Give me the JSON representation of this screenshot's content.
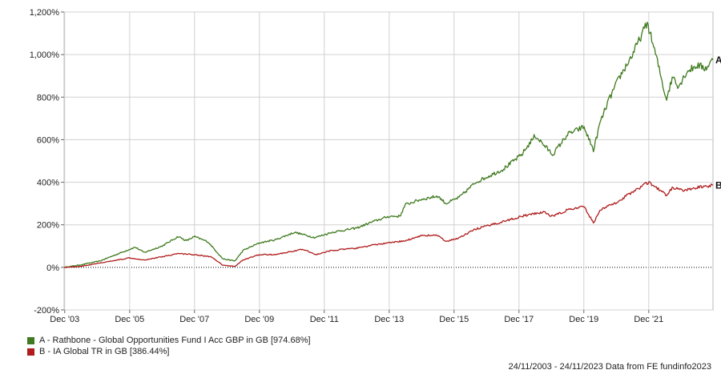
{
  "chart_data": {
    "type": "line",
    "y_unit": "%",
    "ylim": [
      -200,
      1200
    ],
    "y_ticks": [
      -200,
      0,
      200,
      400,
      600,
      800,
      1000,
      1200
    ],
    "y_tick_labels": [
      "-200%",
      "0%",
      "200%",
      "400%",
      "600%",
      "800%",
      "1,000%",
      "1,200%"
    ],
    "x_ticks": [
      "2003-12-01",
      "2005-12-01",
      "2007-12-01",
      "2009-12-01",
      "2011-12-01",
      "2013-12-01",
      "2015-12-01",
      "2017-12-01",
      "2019-12-01",
      "2021-12-01"
    ],
    "x_tick_labels": [
      "Dec '03",
      "Dec '05",
      "Dec '07",
      "Dec '09",
      "Dec '11",
      "Dec '13",
      "Dec '15",
      "Dec '17",
      "Dec '19",
      "Dec '21"
    ],
    "xlim": [
      "2003-11-24",
      "2023-11-24"
    ],
    "grid": true,
    "zero_line": "dotted",
    "legend_position": "bottom-left",
    "series": [
      {
        "id": "A",
        "name": "A - Rathbone - Global Opportunities Fund I Acc GBP in GB [974.68%]",
        "end_label": "A",
        "color": "#3f7a1e",
        "points": [
          [
            "2003-11-24",
            0
          ],
          [
            "2004-06-01",
            12
          ],
          [
            "2005-01-01",
            30
          ],
          [
            "2005-06-01",
            55
          ],
          [
            "2006-02-01",
            95
          ],
          [
            "2006-05-15",
            70
          ],
          [
            "2006-12-01",
            100
          ],
          [
            "2007-06-01",
            145
          ],
          [
            "2007-09-01",
            125
          ],
          [
            "2007-12-01",
            145
          ],
          [
            "2008-05-01",
            120
          ],
          [
            "2008-10-15",
            40
          ],
          [
            "2009-03-01",
            30
          ],
          [
            "2009-06-01",
            80
          ],
          [
            "2009-12-01",
            115
          ],
          [
            "2010-06-01",
            130
          ],
          [
            "2011-01-01",
            165
          ],
          [
            "2011-08-15",
            140
          ],
          [
            "2012-03-01",
            165
          ],
          [
            "2012-12-01",
            185
          ],
          [
            "2013-06-01",
            215
          ],
          [
            "2013-12-01",
            240
          ],
          [
            "2014-04-01",
            240
          ],
          [
            "2014-06-01",
            295
          ],
          [
            "2014-12-01",
            320
          ],
          [
            "2015-06-01",
            335
          ],
          [
            "2015-09-01",
            300
          ],
          [
            "2016-02-01",
            330
          ],
          [
            "2016-08-01",
            400
          ],
          [
            "2017-06-01",
            460
          ],
          [
            "2018-01-01",
            530
          ],
          [
            "2018-06-01",
            620
          ],
          [
            "2018-12-15",
            530
          ],
          [
            "2019-06-01",
            625
          ],
          [
            "2019-12-01",
            660
          ],
          [
            "2020-03-20",
            550
          ],
          [
            "2020-06-01",
            680
          ],
          [
            "2020-09-01",
            780
          ],
          [
            "2021-01-01",
            890
          ],
          [
            "2021-06-01",
            1000
          ],
          [
            "2021-11-15",
            1150
          ],
          [
            "2022-03-01",
            980
          ],
          [
            "2022-06-15",
            790
          ],
          [
            "2022-09-01",
            900
          ],
          [
            "2022-11-01",
            850
          ],
          [
            "2023-02-01",
            920
          ],
          [
            "2023-06-01",
            950
          ],
          [
            "2023-09-01",
            935
          ],
          [
            "2023-11-24",
            975
          ]
        ]
      },
      {
        "id": "B",
        "name": "B - IA Global TR in GB [386.44%]",
        "end_label": "B",
        "color": "#b01c1c",
        "points": [
          [
            "2003-11-24",
            0
          ],
          [
            "2004-06-01",
            5
          ],
          [
            "2005-01-01",
            20
          ],
          [
            "2005-12-01",
            45
          ],
          [
            "2006-05-15",
            35
          ],
          [
            "2006-12-01",
            50
          ],
          [
            "2007-06-01",
            65
          ],
          [
            "2007-12-01",
            60
          ],
          [
            "2008-06-01",
            50
          ],
          [
            "2008-10-15",
            10
          ],
          [
            "2009-03-01",
            5
          ],
          [
            "2009-06-01",
            35
          ],
          [
            "2009-12-01",
            60
          ],
          [
            "2010-06-01",
            60
          ],
          [
            "2011-04-01",
            85
          ],
          [
            "2011-09-01",
            60
          ],
          [
            "2012-03-01",
            80
          ],
          [
            "2012-12-01",
            90
          ],
          [
            "2013-06-01",
            105
          ],
          [
            "2013-12-01",
            115
          ],
          [
            "2014-06-01",
            125
          ],
          [
            "2014-12-01",
            150
          ],
          [
            "2015-06-01",
            150
          ],
          [
            "2015-09-01",
            120
          ],
          [
            "2016-02-01",
            140
          ],
          [
            "2016-08-01",
            180
          ],
          [
            "2017-06-01",
            215
          ],
          [
            "2018-01-01",
            240
          ],
          [
            "2018-09-01",
            260
          ],
          [
            "2018-12-15",
            240
          ],
          [
            "2019-06-01",
            270
          ],
          [
            "2019-12-01",
            285
          ],
          [
            "2020-03-20",
            210
          ],
          [
            "2020-06-01",
            270
          ],
          [
            "2020-12-01",
            305
          ],
          [
            "2021-06-01",
            355
          ],
          [
            "2021-12-01",
            400
          ],
          [
            "2022-06-15",
            340
          ],
          [
            "2022-09-01",
            375
          ],
          [
            "2023-01-01",
            360
          ],
          [
            "2023-06-01",
            375
          ],
          [
            "2023-11-24",
            386
          ]
        ]
      }
    ]
  },
  "footer_text": "24/11/2003 - 24/11/2023 Data from FE fundinfo2023"
}
